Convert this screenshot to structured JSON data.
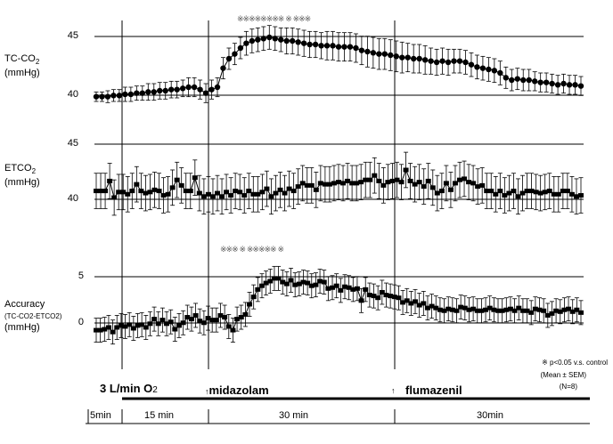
{
  "chart_data": [
    {
      "type": "line",
      "panel": "tc_co2",
      "ylabel_main": "TC-CO",
      "ylabel_sub": "2",
      "ylabel_unit": "(mmHg)",
      "yticks": [
        40,
        45
      ],
      "ylim": [
        39.6,
        45.9
      ],
      "marker": "circle",
      "significance": "※※※※※※※※ ※ ※※※",
      "values": [
        40.0,
        40.0,
        40.0,
        40.1,
        40.1,
        40.2,
        40.2,
        40.3,
        40.3,
        40.4,
        40.4,
        40.5,
        40.5,
        40.6,
        40.6,
        40.7,
        40.8,
        40.8,
        40.6,
        40.3,
        40.6,
        40.8,
        42.4,
        43.2,
        43.6,
        44.1,
        44.5,
        44.7,
        44.8,
        44.9,
        45.0,
        44.9,
        44.8,
        44.7,
        44.7,
        44.6,
        44.5,
        44.4,
        44.4,
        44.3,
        44.3,
        44.3,
        44.2,
        44.2,
        44.2,
        44.1,
        43.9,
        43.8,
        43.7,
        43.6,
        43.6,
        43.5,
        43.4,
        43.3,
        43.3,
        43.2,
        43.2,
        43.1,
        43.0,
        42.9,
        43.0,
        42.9,
        43.0,
        43.0,
        42.9,
        42.7,
        42.5,
        42.4,
        42.3,
        42.2,
        42.0,
        41.6,
        41.4,
        41.5,
        41.4,
        41.4,
        41.3,
        41.2,
        41.2,
        41.1,
        41.0,
        41.1,
        41.0,
        41.0,
        40.9
      ],
      "errors": [
        0.4,
        0.4,
        0.5,
        0.5,
        0.5,
        0.6,
        0.6,
        0.6,
        0.6,
        0.7,
        0.7,
        0.7,
        0.7,
        0.7,
        0.7,
        0.7,
        0.8,
        0.8,
        0.8,
        0.8,
        0.8,
        0.8,
        0.9,
        0.9,
        0.9,
        0.9,
        1.0,
        1.0,
        1.0,
        1.0,
        1.0,
        1.0,
        1.0,
        1.1,
        1.1,
        1.1,
        1.1,
        1.1,
        1.1,
        1.1,
        1.2,
        1.2,
        1.2,
        1.2,
        1.2,
        1.2,
        1.2,
        1.3,
        1.3,
        1.3,
        1.3,
        1.3,
        1.3,
        1.3,
        1.2,
        1.2,
        1.2,
        1.2,
        1.1,
        1.1,
        1.1,
        1.1,
        1.0,
        1.0,
        1.0,
        1.0,
        1.0,
        1.0,
        1.0,
        1.0,
        1.0,
        0.9,
        0.9,
        0.9,
        0.9,
        0.9,
        0.8,
        0.8,
        0.8,
        0.8,
        0.8,
        0.8,
        0.8,
        0.8,
        0.8
      ]
    },
    {
      "type": "line",
      "panel": "etco2",
      "ylabel_main": "ETCO",
      "ylabel_sub": "2",
      "ylabel_unit": "(mmHg)",
      "yticks": [
        40,
        45
      ],
      "ylim": [
        36.5,
        46.0
      ],
      "marker": "square",
      "values": [
        40.8,
        40.8,
        40.8,
        41.7,
        40.2,
        40.7,
        40.7,
        40.5,
        40.8,
        41.4,
        40.8,
        40.6,
        40.7,
        40.9,
        40.8,
        40.4,
        40.5,
        41.1,
        41.8,
        41.3,
        40.8,
        40.8,
        42.0,
        40.6,
        40.3,
        40.5,
        40.3,
        40.6,
        40.3,
        40.7,
        40.4,
        40.8,
        40.7,
        40.4,
        40.8,
        40.5,
        40.5,
        40.7,
        41.0,
        40.3,
        40.6,
        40.9,
        40.6,
        41.0,
        40.8,
        41.2,
        41.5,
        41.3,
        41.3,
        40.9,
        41.5,
        41.4,
        41.4,
        41.5,
        41.6,
        41.5,
        41.7,
        41.5,
        41.5,
        41.6,
        41.8,
        41.8,
        42.2,
        41.7,
        41.3,
        41.6,
        41.7,
        41.8,
        41.6,
        42.7,
        41.7,
        41.4,
        41.6,
        41.2,
        41.7,
        41.1,
        40.6,
        40.8,
        41.5,
        40.9,
        41.5,
        41.8,
        41.9,
        41.6,
        41.5,
        41.2,
        41.3,
        40.8,
        40.8,
        40.5,
        40.8,
        40.4,
        40.6,
        40.8,
        40.3,
        40.6,
        40.8,
        40.8,
        40.7,
        40.6,
        40.7,
        40.8,
        40.5,
        40.5,
        40.8,
        40.8,
        40.5,
        40.3,
        40.4
      ]
    },
    {
      "type": "line",
      "panel": "accuracy",
      "ylabel_main": "Accuracy",
      "ylabel_sub": "(TC-CO2-ETCO2)",
      "ylabel_unit": "(mmHg)",
      "yticks": [
        0,
        5
      ],
      "ylim": [
        -2.9,
        7.2
      ],
      "marker": "square",
      "significance": "※※※ ※ ※※※※※ ※",
      "values": [
        -0.6,
        -0.6,
        -0.5,
        -0.3,
        -0.8,
        -0.3,
        -0.1,
        -0.2,
        0.0,
        -0.4,
        -0.1,
        0.0,
        -0.3,
        0.1,
        0.6,
        0.1,
        0.5,
        0.1,
        0.3,
        -0.5,
        -0.1,
        0.2,
        0.8,
        0.6,
        1.0,
        0.4,
        0.2,
        0.7,
        0.5,
        0.5,
        1.0,
        0.8,
        -0.2,
        -0.6,
        0.6,
        0.8,
        1.1,
        2.2,
        3.0,
        3.8,
        4.2,
        4.5,
        4.7,
        5.0,
        5.0,
        4.6,
        4.4,
        4.8,
        4.3,
        4.4,
        4.6,
        4.5,
        4.2,
        4.3,
        4.7,
        4.6,
        3.9,
        4.0,
        4.2,
        3.7,
        4.1,
        4.0,
        3.8,
        3.9,
        2.6,
        3.8,
        3.2,
        3.1,
        2.9,
        3.5,
        3.2,
        3.1,
        3.0,
        2.9,
        2.4,
        2.6,
        2.3,
        2.5,
        2.1,
        2.3,
        1.8,
        2.0,
        1.8,
        1.6,
        1.5,
        1.7,
        1.6,
        1.5,
        1.9,
        1.8,
        1.6,
        1.7,
        1.5,
        1.5,
        1.6,
        1.8,
        1.6,
        1.5,
        1.5,
        1.6,
        1.7,
        1.5,
        1.8,
        1.5,
        1.5,
        1.3,
        1.7,
        1.6,
        1.5,
        1.0,
        1.2,
        1.5,
        1.4,
        1.6,
        1.7,
        1.4,
        1.6,
        1.3
      ]
    }
  ],
  "events": {
    "o2": "3 L/min O",
    "o2_sub": "2",
    "midazolam": "midazolam",
    "flumazenil": "flumazenil",
    "arrow": "↑"
  },
  "timeline": {
    "segments": [
      "5min",
      "15 min",
      "30 min",
      "30min"
    ]
  },
  "notes": {
    "p_value": "※ p<0.05 v.s. control",
    "mean_sem": "(Mean ± SEM)",
    "n": "(N=8)"
  }
}
